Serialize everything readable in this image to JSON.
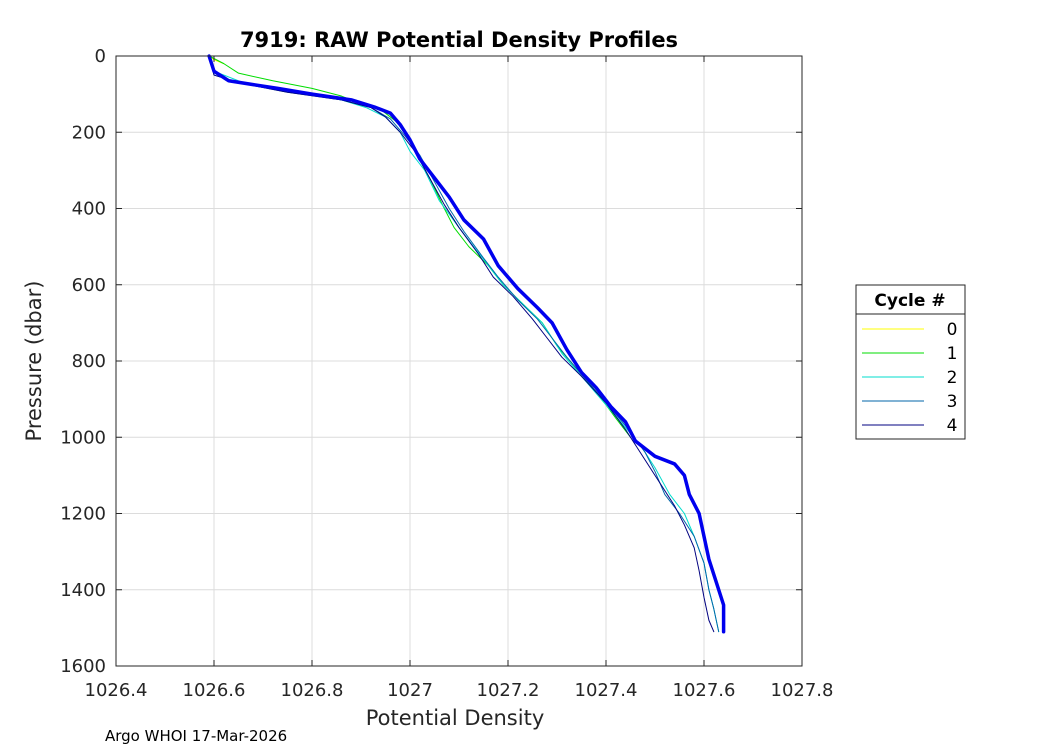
{
  "chart_data": {
    "type": "line",
    "title": "7919: RAW Potential Density Profiles",
    "xlabel": "Potential Density",
    "ylabel": "Pressure (dbar)",
    "xlim": [
      1026.4,
      1027.8
    ],
    "ylim": [
      0,
      1600
    ],
    "y_reversed": true,
    "grid": true,
    "xticks": [
      "1026.4",
      "1026.6",
      "1026.8",
      "1027",
      "1027.2",
      "1027.4",
      "1027.6",
      "1027.8"
    ],
    "yticks": [
      "0",
      "200",
      "400",
      "600",
      "800",
      "1000",
      "1200",
      "1400",
      "1600"
    ],
    "legend": {
      "title": "Cycle #",
      "placement": "outside-right"
    },
    "series": [
      {
        "name": "0",
        "color": "#ffff00",
        "linewidth": 1,
        "points": [
          [
            1026.59,
            0
          ],
          [
            1026.6,
            10
          ],
          [
            1026.62,
            20
          ]
        ]
      },
      {
        "name": "1",
        "color": "#00dd00",
        "linewidth": 1,
        "points": [
          [
            1026.59,
            0
          ],
          [
            1026.62,
            20
          ],
          [
            1026.65,
            45
          ],
          [
            1026.72,
            65
          ],
          [
            1026.8,
            85
          ],
          [
            1026.86,
            105
          ],
          [
            1026.9,
            125
          ],
          [
            1026.94,
            140
          ],
          [
            1026.97,
            170
          ],
          [
            1026.99,
            200
          ],
          [
            1027.01,
            250
          ],
          [
            1027.04,
            320
          ],
          [
            1027.07,
            400
          ],
          [
            1027.09,
            450
          ],
          [
            1027.12,
            500
          ],
          [
            1027.16,
            550
          ],
          [
            1027.19,
            600
          ],
          [
            1027.23,
            650
          ],
          [
            1027.27,
            700
          ],
          [
            1027.3,
            760
          ],
          [
            1027.34,
            820
          ],
          [
            1027.38,
            880
          ],
          [
            1027.42,
            950
          ],
          [
            1027.45,
            1000
          ]
        ]
      },
      {
        "name": "2",
        "color": "#00ddcc",
        "linewidth": 1,
        "points": [
          [
            1026.59,
            0
          ],
          [
            1026.6,
            40
          ],
          [
            1026.66,
            70
          ],
          [
            1026.76,
            95
          ],
          [
            1026.86,
            115
          ],
          [
            1026.91,
            135
          ],
          [
            1026.95,
            160
          ],
          [
            1026.98,
            200
          ],
          [
            1027.0,
            250
          ],
          [
            1027.03,
            300
          ],
          [
            1027.06,
            380
          ],
          [
            1027.1,
            450
          ],
          [
            1027.13,
            500
          ],
          [
            1027.16,
            550
          ],
          [
            1027.19,
            600
          ],
          [
            1027.23,
            650
          ],
          [
            1027.27,
            700
          ],
          [
            1027.31,
            780
          ],
          [
            1027.35,
            840
          ],
          [
            1027.39,
            900
          ],
          [
            1027.43,
            960
          ],
          [
            1027.47,
            1020
          ],
          [
            1027.5,
            1080
          ],
          [
            1027.53,
            1150
          ],
          [
            1027.56,
            1200
          ],
          [
            1027.58,
            1260
          ],
          [
            1027.6,
            1330
          ],
          [
            1027.61,
            1400
          ],
          [
            1027.62,
            1450
          ],
          [
            1027.63,
            1510
          ]
        ]
      },
      {
        "name": "3",
        "color": "#0066aa",
        "linewidth": 1,
        "points": [
          [
            1026.59,
            0
          ],
          [
            1026.6,
            50
          ],
          [
            1026.65,
            70
          ],
          [
            1026.75,
            95
          ],
          [
            1026.86,
            115
          ],
          [
            1026.92,
            135
          ],
          [
            1026.96,
            165
          ],
          [
            1026.99,
            210
          ],
          [
            1027.02,
            260
          ],
          [
            1027.05,
            330
          ],
          [
            1027.08,
            400
          ],
          [
            1027.11,
            460
          ],
          [
            1027.15,
            530
          ],
          [
            1027.18,
            580
          ],
          [
            1027.22,
            640
          ],
          [
            1027.26,
            690
          ],
          [
            1027.29,
            740
          ],
          [
            1027.32,
            790
          ],
          [
            1027.36,
            850
          ],
          [
            1027.4,
            910
          ],
          [
            1027.44,
            970
          ],
          [
            1027.48,
            1040
          ],
          [
            1027.5,
            1090
          ],
          [
            1027.52,
            1150
          ],
          [
            1027.55,
            1200
          ],
          [
            1027.58,
            1260
          ],
          [
            1027.6,
            1330
          ],
          [
            1027.61,
            1400
          ],
          [
            1027.62,
            1450
          ],
          [
            1027.63,
            1510
          ]
        ]
      },
      {
        "name": "4",
        "color": "#000080",
        "linewidth": 1,
        "points": [
          [
            1026.59,
            0
          ],
          [
            1026.6,
            50
          ],
          [
            1026.65,
            70
          ],
          [
            1026.75,
            95
          ],
          [
            1026.86,
            115
          ],
          [
            1026.92,
            135
          ],
          [
            1026.95,
            160
          ],
          [
            1026.98,
            200
          ],
          [
            1027.01,
            250
          ],
          [
            1027.04,
            320
          ],
          [
            1027.07,
            390
          ],
          [
            1027.1,
            450
          ],
          [
            1027.14,
            520
          ],
          [
            1027.17,
            580
          ],
          [
            1027.21,
            630
          ],
          [
            1027.25,
            690
          ],
          [
            1027.28,
            740
          ],
          [
            1027.31,
            790
          ],
          [
            1027.35,
            840
          ],
          [
            1027.4,
            910
          ],
          [
            1027.44,
            980
          ],
          [
            1027.48,
            1060
          ],
          [
            1027.51,
            1120
          ],
          [
            1027.54,
            1180
          ],
          [
            1027.56,
            1230
          ],
          [
            1027.58,
            1290
          ],
          [
            1027.59,
            1350
          ],
          [
            1027.6,
            1420
          ],
          [
            1027.61,
            1480
          ],
          [
            1027.62,
            1510
          ]
        ]
      },
      {
        "name": "",
        "color": "#0000ee",
        "linewidth": 3.5,
        "points": [
          [
            1026.59,
            0
          ],
          [
            1026.6,
            40
          ],
          [
            1026.63,
            65
          ],
          [
            1026.68,
            75
          ],
          [
            1026.73,
            85
          ],
          [
            1026.8,
            100
          ],
          [
            1026.88,
            115
          ],
          [
            1026.93,
            135
          ],
          [
            1026.96,
            150
          ],
          [
            1026.98,
            180
          ],
          [
            1027.0,
            220
          ],
          [
            1027.02,
            270
          ],
          [
            1027.05,
            320
          ],
          [
            1027.08,
            370
          ],
          [
            1027.11,
            430
          ],
          [
            1027.15,
            480
          ],
          [
            1027.18,
            550
          ],
          [
            1027.22,
            610
          ],
          [
            1027.26,
            660
          ],
          [
            1027.29,
            700
          ],
          [
            1027.32,
            770
          ],
          [
            1027.35,
            830
          ],
          [
            1027.38,
            870
          ],
          [
            1027.41,
            920
          ],
          [
            1027.44,
            960
          ],
          [
            1027.46,
            1010
          ],
          [
            1027.5,
            1050
          ],
          [
            1027.54,
            1070
          ],
          [
            1027.56,
            1100
          ],
          [
            1027.57,
            1150
          ],
          [
            1027.59,
            1200
          ],
          [
            1027.6,
            1260
          ],
          [
            1027.61,
            1320
          ],
          [
            1027.62,
            1360
          ],
          [
            1027.63,
            1400
          ],
          [
            1027.64,
            1440
          ],
          [
            1027.64,
            1510
          ]
        ]
      }
    ]
  },
  "footer": {
    "text": "Argo WHOI 17-Mar-2026"
  }
}
